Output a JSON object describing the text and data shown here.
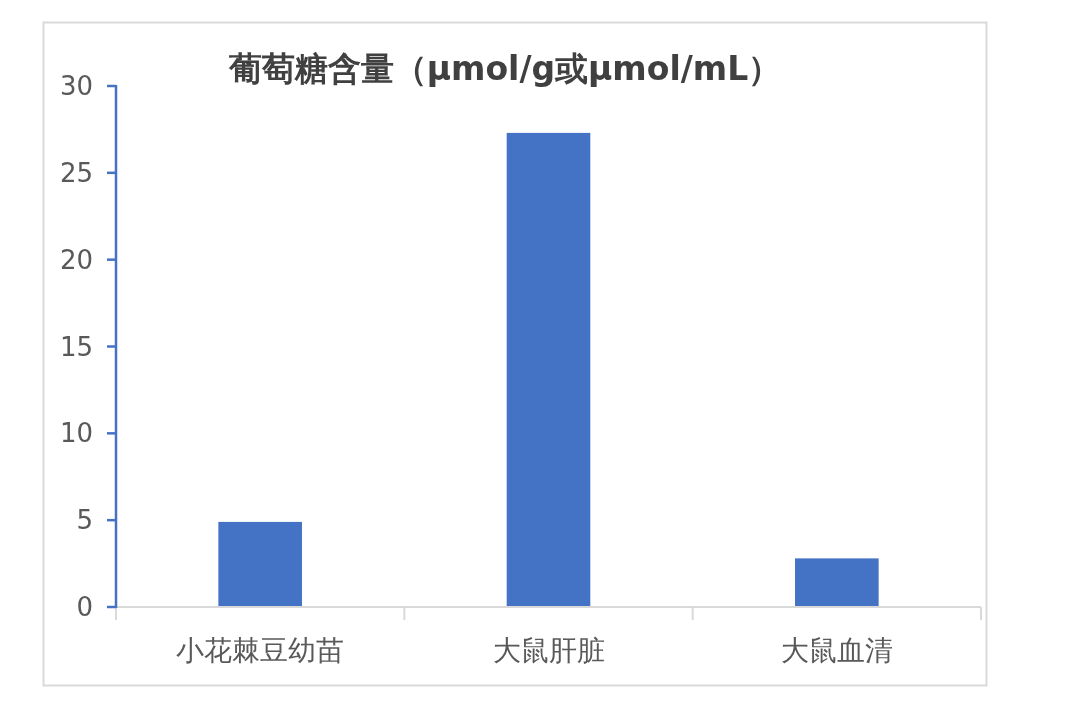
{
  "chart_data": {
    "type": "bar",
    "title": "葡萄糖含量（μmol/g或μmol/mL）",
    "categories": [
      "小花棘豆幼苗",
      "大鼠肝脏",
      "大鼠血清"
    ],
    "values": [
      4.9,
      27.3,
      2.8
    ],
    "color": "#4472c4",
    "ylim": [
      0,
      30
    ],
    "yticks": [
      0,
      5,
      10,
      15,
      20,
      25,
      30
    ],
    "grid": false
  }
}
